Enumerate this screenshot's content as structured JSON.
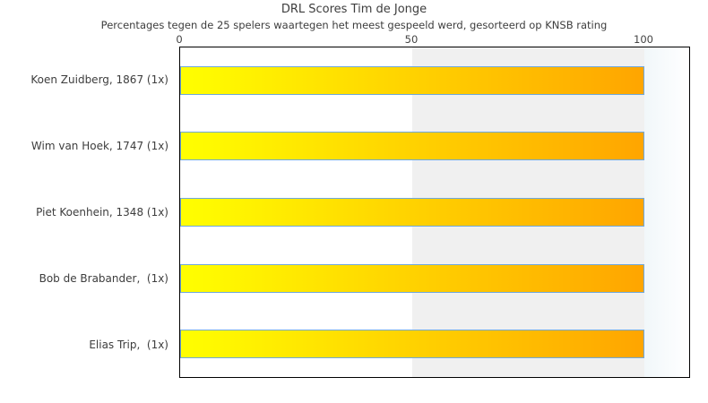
{
  "title": "DRL Scores Tim de Jonge",
  "subtitle": "Percentages tegen de 25 spelers waartegen het meest gespeeld werd, gesorteerd op KNSB rating",
  "chart_data": {
    "type": "bar",
    "orientation": "horizontal",
    "title": "DRL Scores Tim de Jonge",
    "subtitle": "Percentages tegen de 25 spelers waartegen het meest gespeeld werd, gesorteerd op KNSB rating",
    "categories": [
      "Koen Zuidberg, 1867 (1x)",
      "Wim van Hoek, 1747 (1x)",
      "Piet Koenhein, 1348 (1x)",
      "Bob de Brabander,  (1x)",
      "Elias Trip,  (1x)"
    ],
    "values": [
      100,
      100,
      100,
      100,
      100
    ],
    "xlabel": "",
    "ylabel": "",
    "xlim": [
      0,
      110
    ],
    "x_ticks": [
      "0",
      "50",
      "100"
    ],
    "x_tick_values": [
      0,
      50,
      100
    ],
    "axis_position": "top",
    "grid": "banded-50",
    "legend": "none"
  },
  "colors": {
    "bar_gradient_start": "#ffff00",
    "bar_gradient_end": "#ffa500",
    "bar_border": "#6fa8dc",
    "band_white": "#ffffff",
    "band_gray": "#f0f0f0",
    "overflow_band_start": "#f1f7fa",
    "overflow_band_end": "#ffffff",
    "plot_border": "#000000",
    "text": "#3d3d3d"
  }
}
